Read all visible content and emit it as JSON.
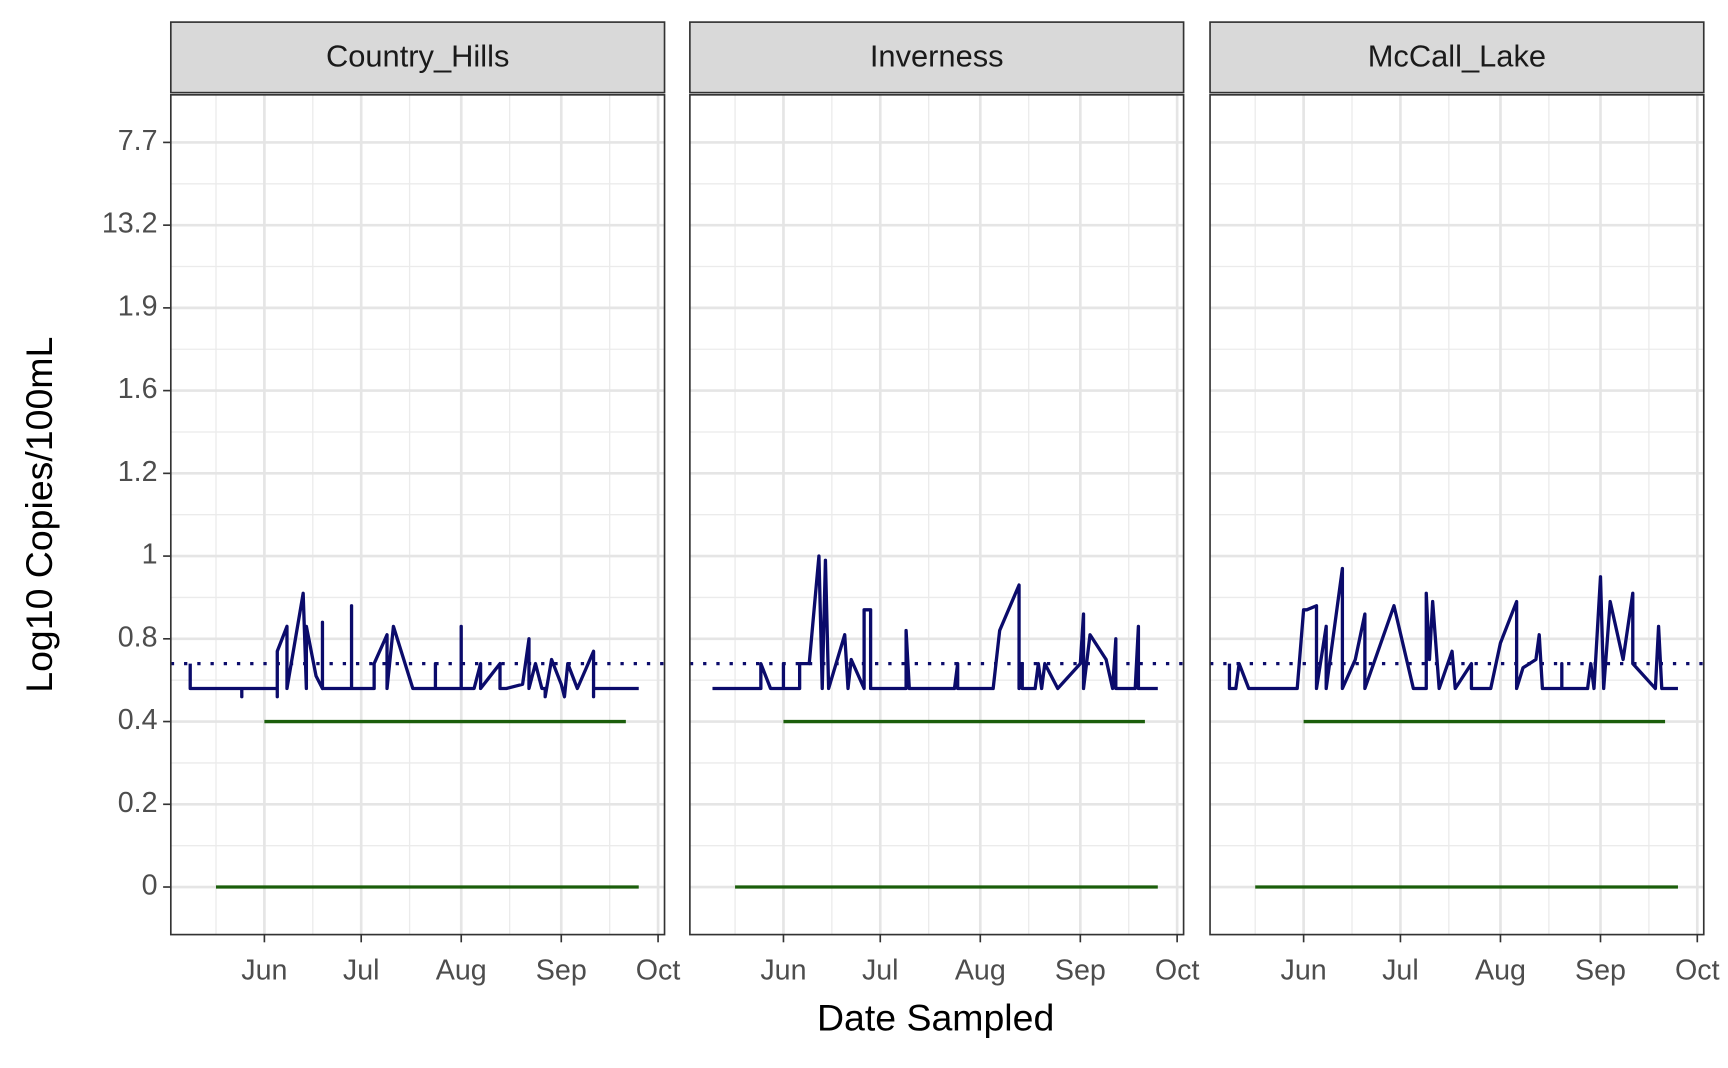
{
  "chart_data": {
    "type": "line",
    "xlabel": "Date Sampled",
    "ylabel": "Log10 Copies/100mL",
    "ylim": [
      -0.115,
      1.915
    ],
    "yticks": [
      0,
      0.2,
      0.4,
      {
        "value": 0.6,
        "label": "0.8"
      },
      {
        "value": 0.8,
        "label": "1"
      },
      {
        "value": 1.0,
        "label": "1.2"
      },
      {
        "value": 1.2,
        "label": "1.6"
      },
      {
        "value": 1.4,
        "label": "1.9"
      },
      {
        "value": 1.6,
        "label": "13.2"
      },
      {
        "value": 1.8,
        "label": "7.7"
      }
    ],
    "yminor": [
      0.1,
      0.3,
      0.5,
      0.7,
      0.9,
      1.1,
      1.3,
      1.5,
      1.7
    ],
    "xlim": [
      "05-03",
      "10-03"
    ],
    "xticks": [
      {
        "value": "06-01",
        "label": "Jun"
      },
      {
        "value": "07-01",
        "label": "Jul"
      },
      {
        "value": "08-01",
        "label": "Aug"
      },
      {
        "value": "09-01",
        "label": "Sep"
      },
      {
        "value": "10-01",
        "label": "Oct"
      }
    ],
    "xminor": [
      "05-17",
      "06-16",
      "07-16",
      "08-16",
      "09-16"
    ],
    "grid": true,
    "hline": {
      "value": 0.54,
      "color": "#0b0b6b",
      "dash": "dotted"
    },
    "facets": [
      {
        "title": "Country_Hills",
        "series": [
          {
            "color": "#0b0b6b",
            "x": [
              "05-09",
              "05-09",
              "05-25",
              "05-25",
              "05-25",
              "06-05",
              "06-05",
              "06-05",
              "06-08",
              "06-08",
              "06-13",
              "06-14",
              "06-14",
              "06-17",
              "06-19",
              "06-19",
              "06-19",
              "06-28",
              "06-28",
              "06-28",
              "07-05",
              "07-05",
              "07-09",
              "07-09",
              "07-11",
              "07-17",
              "07-24",
              "07-24",
              "07-24",
              "08-01",
              "08-01",
              "08-01",
              "08-05",
              "08-07",
              "08-07",
              "08-10",
              "08-13",
              "08-13",
              "08-15",
              "08-20",
              "08-22",
              "08-22",
              "08-24",
              "08-26",
              "08-27",
              "08-27",
              "08-29",
              "09-01",
              "09-02",
              "09-03",
              "09-06",
              "09-11",
              "09-11",
              "09-11",
              "09-25"
            ],
            "values": [
              0.54,
              0.48,
              0.48,
              0.46,
              0.48,
              0.48,
              0.46,
              0.57,
              0.63,
              0.48,
              0.71,
              0.48,
              0.63,
              0.51,
              0.48,
              0.64,
              0.48,
              0.48,
              0.68,
              0.48,
              0.48,
              0.54,
              0.61,
              0.48,
              0.63,
              0.48,
              0.48,
              0.54,
              0.48,
              0.48,
              0.63,
              0.48,
              0.48,
              0.54,
              0.48,
              0.51,
              0.54,
              0.48,
              0.48,
              0.49,
              0.6,
              0.48,
              0.54,
              0.48,
              0.48,
              0.46,
              0.55,
              0.49,
              0.46,
              0.54,
              0.48,
              0.57,
              0.46,
              0.48,
              0.48
            ]
          },
          {
            "color": "#1b5e0b",
            "x": [
              "06-01",
              "09-21"
            ],
            "values": [
              0.4,
              0.4
            ]
          },
          {
            "color": "#1b5e0b",
            "x": [
              "05-17",
              "09-25"
            ],
            "values": [
              0,
              0
            ]
          }
        ]
      },
      {
        "title": "Inverness",
        "series": [
          {
            "color": "#0b0b6b",
            "x": [
              "05-10",
              "05-25",
              "05-25",
              "05-28",
              "06-01",
              "06-01",
              "06-01",
              "06-06",
              "06-06",
              "06-09",
              "06-12",
              "06-13",
              "06-14",
              "06-15",
              "06-20",
              "06-21",
              "06-22",
              "06-26",
              "06-26",
              "06-28",
              "06-28",
              "07-09",
              "07-09",
              "07-10",
              "07-24",
              "07-25",
              "07-25",
              "08-05",
              "08-07",
              "08-13",
              "08-13",
              "08-14",
              "08-14",
              "08-18",
              "08-19",
              "08-20",
              "08-21",
              "08-25",
              "09-01",
              "09-02",
              "09-02",
              "09-04",
              "09-09",
              "09-11",
              "09-12",
              "09-12",
              "09-18",
              "09-19",
              "09-19",
              "09-25"
            ],
            "values": [
              0.48,
              0.48,
              0.54,
              0.48,
              0.48,
              0.54,
              0.48,
              0.48,
              0.54,
              0.54,
              0.8,
              0.48,
              0.79,
              0.48,
              0.61,
              0.48,
              0.55,
              0.48,
              0.67,
              0.67,
              0.48,
              0.48,
              0.62,
              0.48,
              0.48,
              0.54,
              0.48,
              0.48,
              0.62,
              0.73,
              0.48,
              0.54,
              0.48,
              0.48,
              0.54,
              0.48,
              0.54,
              0.48,
              0.54,
              0.66,
              0.48,
              0.61,
              0.55,
              0.48,
              0.6,
              0.48,
              0.48,
              0.63,
              0.48,
              0.48
            ]
          },
          {
            "color": "#1b5e0b",
            "x": [
              "06-01",
              "09-21"
            ],
            "values": [
              0.4,
              0.4
            ]
          },
          {
            "color": "#1b5e0b",
            "x": [
              "05-17",
              "09-25"
            ],
            "values": [
              0,
              0
            ]
          }
        ]
      },
      {
        "title": "McCall_Lake",
        "series": [
          {
            "color": "#0b0b6b",
            "x": [
              "05-09",
              "05-09",
              "05-11",
              "05-12",
              "05-15",
              "05-23",
              "05-30",
              "06-01",
              "06-02",
              "06-05",
              "06-05",
              "06-08",
              "06-08",
              "06-13",
              "06-13",
              "06-17",
              "06-20",
              "06-20",
              "06-29",
              "07-05",
              "07-09",
              "07-09",
              "07-10",
              "07-11",
              "07-13",
              "07-17",
              "07-18",
              "07-23",
              "07-23",
              "07-29",
              "08-01",
              "08-06",
              "08-06",
              "08-08",
              "08-12",
              "08-13",
              "08-14",
              "08-20",
              "08-20",
              "08-20",
              "08-28",
              "08-29",
              "08-30",
              "09-01",
              "09-02",
              "09-04",
              "09-08",
              "09-11",
              "09-11",
              "09-18",
              "09-19",
              "09-20",
              "09-25"
            ],
            "values": [
              0.54,
              0.48,
              0.48,
              0.54,
              0.48,
              0.48,
              0.48,
              0.67,
              0.67,
              0.68,
              0.48,
              0.63,
              0.48,
              0.77,
              0.48,
              0.55,
              0.66,
              0.48,
              0.68,
              0.48,
              0.48,
              0.71,
              0.55,
              0.69,
              0.48,
              0.57,
              0.48,
              0.54,
              0.48,
              0.48,
              0.59,
              0.69,
              0.48,
              0.53,
              0.55,
              0.61,
              0.48,
              0.48,
              0.54,
              0.48,
              0.48,
              0.54,
              0.48,
              0.75,
              0.48,
              0.69,
              0.55,
              0.71,
              0.54,
              0.48,
              0.63,
              0.48,
              0.48
            ]
          },
          {
            "color": "#1b5e0b",
            "x": [
              "06-01",
              "09-21"
            ],
            "values": [
              0.4,
              0.4
            ]
          },
          {
            "color": "#1b5e0b",
            "x": [
              "05-17",
              "09-25"
            ],
            "values": [
              0,
              0
            ]
          }
        ]
      }
    ]
  }
}
